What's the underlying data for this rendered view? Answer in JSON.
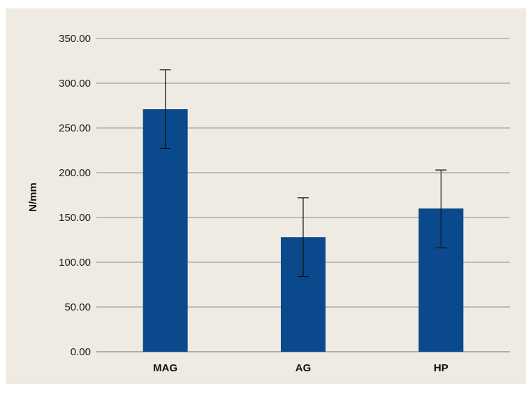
{
  "chart_data": {
    "type": "bar",
    "title": "",
    "xlabel": "",
    "ylabel": "N/mm",
    "ylim": [
      0,
      350
    ],
    "yticks": [
      "0.00",
      "50.00",
      "100.00",
      "150.00",
      "200.00",
      "250.00",
      "300.00",
      "350.00"
    ],
    "categories": [
      "MAG",
      "AG",
      "HP"
    ],
    "values": [
      271,
      128,
      160
    ],
    "error_low": [
      227,
      84,
      116
    ],
    "error_high": [
      315,
      172,
      203
    ],
    "grid": true,
    "legend": "none",
    "colors": {
      "bar": "#0a4a8c",
      "grid": "#8c8c8c",
      "background": "#efebe2",
      "error_bar": "#111111"
    }
  }
}
